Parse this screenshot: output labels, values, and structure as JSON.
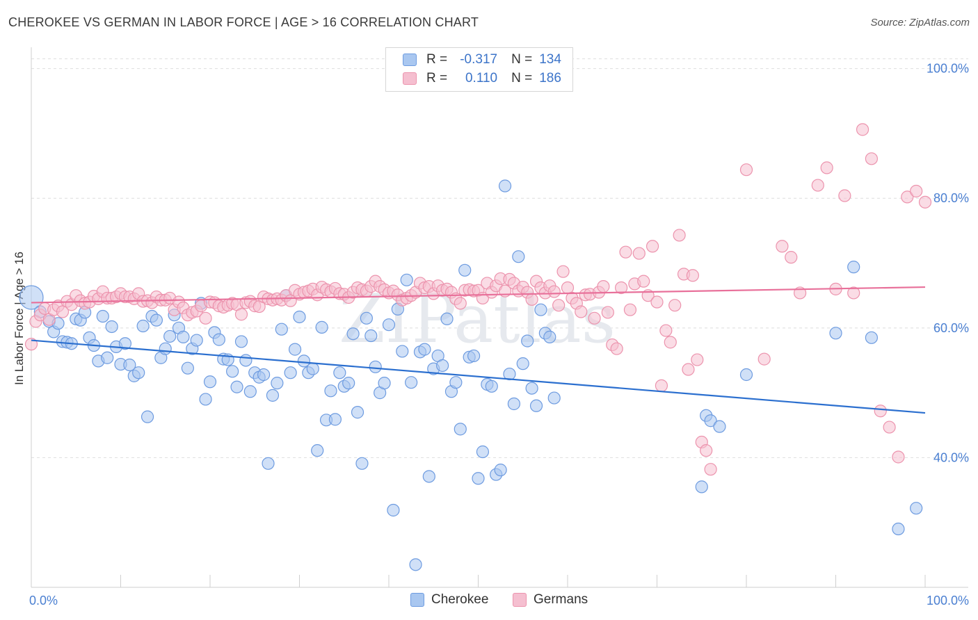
{
  "title": "CHEROKEE VS GERMAN IN LABOR FORCE | AGE > 16 CORRELATION CHART",
  "source": "Source: ZipAtlas.com",
  "watermark": "ZIPatlas",
  "legend": {
    "rows": [
      {
        "r_label": "R =",
        "r_value": "-0.317",
        "n_label": "N =",
        "n_value": "134"
      },
      {
        "r_label": "R =",
        "r_value": "0.110",
        "n_label": "N =",
        "n_value": "186"
      }
    ]
  },
  "bottom_legend": [
    "Cherokee",
    "Germans"
  ],
  "colors": {
    "blue_fill": "#a9c7f0",
    "blue_stroke": "#6d9be0",
    "blue_line": "#2b6fcf",
    "pink_fill": "#f5bfd0",
    "pink_stroke": "#ec93ad",
    "pink_line": "#e8709a",
    "tick_text": "#4a7fd1",
    "grid": "#dedede"
  },
  "chart_data": {
    "type": "scatter",
    "title": "CHEROKEE VS GERMAN IN LABOR FORCE | AGE > 16 CORRELATION CHART",
    "xlabel": "",
    "ylabel": "In Labor Force | Age > 16",
    "xlim": [
      0,
      100
    ],
    "ylim": [
      20,
      102
    ],
    "x_tick_labels": [
      "0.0%",
      "100.0%"
    ],
    "y_ticks": [
      40,
      60,
      80,
      100
    ],
    "y_tick_labels": [
      "40.0%",
      "60.0%",
      "80.0%",
      "100.0%"
    ],
    "grid": true,
    "legend_position": "top-center",
    "series": [
      {
        "name": "Cherokee",
        "r": -0.317,
        "n": 134,
        "trend": {
          "x": [
            0,
            100
          ],
          "y": [
            58.1,
            46.9
          ]
        },
        "points": [
          [
            0,
            64.7
          ],
          [
            1,
            62.5
          ],
          [
            2,
            61
          ],
          [
            2.5,
            59.4
          ],
          [
            3,
            60.7
          ],
          [
            3.5,
            57.9
          ],
          [
            4,
            57.8
          ],
          [
            4.5,
            57.6
          ],
          [
            5,
            61.4
          ],
          [
            5.5,
            61.2
          ],
          [
            6,
            62.4
          ],
          [
            6.5,
            58.5
          ],
          [
            7,
            57.3
          ],
          [
            7.5,
            54.9
          ],
          [
            8,
            61.8
          ],
          [
            8.5,
            55.4
          ],
          [
            9,
            60.2
          ],
          [
            9.5,
            57.1
          ],
          [
            10,
            54.4
          ],
          [
            10.5,
            57.6
          ],
          [
            11,
            54.3
          ],
          [
            11.5,
            52.6
          ],
          [
            12,
            53.1
          ],
          [
            12.5,
            60.3
          ],
          [
            13,
            46.3
          ],
          [
            13.5,
            61.8
          ],
          [
            14,
            61.2
          ],
          [
            14.5,
            55.4
          ],
          [
            15,
            56.8
          ],
          [
            15.5,
            58.7
          ],
          [
            16,
            62
          ],
          [
            16.5,
            60
          ],
          [
            17,
            58.6
          ],
          [
            17.5,
            53.8
          ],
          [
            18,
            56.8
          ],
          [
            18.5,
            58.1
          ],
          [
            19,
            63.8
          ],
          [
            19.5,
            49
          ],
          [
            20,
            51.7
          ],
          [
            20.5,
            59.3
          ],
          [
            21,
            58.2
          ],
          [
            21.5,
            55.2
          ],
          [
            22,
            55.1
          ],
          [
            22.5,
            53.3
          ],
          [
            23,
            50.9
          ],
          [
            23.5,
            57.9
          ],
          [
            24,
            55
          ],
          [
            24.5,
            50.2
          ],
          [
            25,
            53.1
          ],
          [
            25.5,
            52.4
          ],
          [
            26,
            52.8
          ],
          [
            26.5,
            39.1
          ],
          [
            27,
            49.6
          ],
          [
            27.5,
            51.5
          ],
          [
            28,
            59.8
          ],
          [
            28.5,
            65
          ],
          [
            29,
            53.1
          ],
          [
            29.5,
            56.7
          ],
          [
            30,
            61.7
          ],
          [
            30.5,
            54.9
          ],
          [
            31,
            53.1
          ],
          [
            31.5,
            53.7
          ],
          [
            32,
            41.1
          ],
          [
            32.5,
            60.1
          ],
          [
            33,
            45.8
          ],
          [
            33.5,
            50.3
          ],
          [
            34,
            45.9
          ],
          [
            34.5,
            53.1
          ],
          [
            35,
            51
          ],
          [
            35.5,
            51.5
          ],
          [
            36,
            59.1
          ],
          [
            36.5,
            47
          ],
          [
            37,
            39.1
          ],
          [
            37.5,
            61.5
          ],
          [
            38,
            58.8
          ],
          [
            38.5,
            54
          ],
          [
            39,
            50
          ],
          [
            39.5,
            51.5
          ],
          [
            40,
            60.5
          ],
          [
            40.5,
            31.9
          ],
          [
            41,
            62.9
          ],
          [
            41.5,
            56.4
          ],
          [
            42,
            67.4
          ],
          [
            42.5,
            51.6
          ],
          [
            43,
            23.5
          ],
          [
            43.5,
            56.3
          ],
          [
            44,
            56.7
          ],
          [
            44.5,
            37.1
          ],
          [
            45,
            53.7
          ],
          [
            45.5,
            55.7
          ],
          [
            46,
            54.2
          ],
          [
            46.5,
            61.4
          ],
          [
            47,
            50.2
          ],
          [
            47.5,
            51.6
          ],
          [
            48,
            44.4
          ],
          [
            48.5,
            68.9
          ],
          [
            49,
            55.5
          ],
          [
            49.5,
            55.7
          ],
          [
            50,
            36.8
          ],
          [
            50.5,
            40.9
          ],
          [
            51,
            51.3
          ],
          [
            51.5,
            51
          ],
          [
            52,
            37.4
          ],
          [
            52.5,
            38.1
          ],
          [
            53,
            81.9
          ],
          [
            53.5,
            52.9
          ],
          [
            54,
            48.3
          ],
          [
            54.5,
            71
          ],
          [
            55,
            54.5
          ],
          [
            55.5,
            58
          ],
          [
            56,
            50.7
          ],
          [
            56.5,
            48
          ],
          [
            57,
            62.8
          ],
          [
            57.5,
            59.2
          ],
          [
            58,
            58.6
          ],
          [
            58.5,
            49.2
          ],
          [
            75,
            35.5
          ],
          [
            75.5,
            46.5
          ],
          [
            76,
            45.7
          ],
          [
            77,
            44.8
          ],
          [
            80,
            52.8
          ],
          [
            90,
            59.2
          ],
          [
            92,
            69.4
          ],
          [
            94,
            58.5
          ],
          [
            97,
            29
          ],
          [
            99,
            32.2
          ]
        ]
      },
      {
        "name": "Germans",
        "r": 0.11,
        "n": 186,
        "trend": {
          "x": [
            0,
            100
          ],
          "y": [
            63.9,
            66.3
          ]
        },
        "points": [
          [
            0,
            57.5
          ],
          [
            0.5,
            61
          ],
          [
            1,
            62
          ],
          [
            1.5,
            63
          ],
          [
            2,
            61.3
          ],
          [
            2.5,
            62.8
          ],
          [
            3,
            63.4
          ],
          [
            3.5,
            62.5
          ],
          [
            4,
            64.1
          ],
          [
            4.5,
            63.6
          ],
          [
            5,
            65
          ],
          [
            5.5,
            64.2
          ],
          [
            6,
            63.8
          ],
          [
            6.5,
            64
          ],
          [
            7,
            64.9
          ],
          [
            7.5,
            64.5
          ],
          [
            8,
            65.6
          ],
          [
            8.5,
            64.6
          ],
          [
            9,
            64.6
          ],
          [
            9.5,
            64.8
          ],
          [
            10,
            65.3
          ],
          [
            10.5,
            64.8
          ],
          [
            11,
            64.8
          ],
          [
            11.5,
            64.5
          ],
          [
            12,
            65.3
          ],
          [
            12.5,
            64.1
          ],
          [
            13,
            64.2
          ],
          [
            13.5,
            63.9
          ],
          [
            14,
            64.8
          ],
          [
            14.5,
            64.3
          ],
          [
            15,
            64.3
          ],
          [
            15.5,
            64.6
          ],
          [
            16,
            62.8
          ],
          [
            16.5,
            64
          ],
          [
            17,
            63.1
          ],
          [
            17.5,
            62
          ],
          [
            18,
            62.4
          ],
          [
            18.5,
            62.6
          ],
          [
            19,
            63.4
          ],
          [
            19.5,
            61.5
          ],
          [
            20,
            64
          ],
          [
            20.5,
            63.9
          ],
          [
            21,
            63.4
          ],
          [
            21.5,
            63.2
          ],
          [
            22,
            63.5
          ],
          [
            22.5,
            63.8
          ],
          [
            23,
            63.6
          ],
          [
            23.5,
            62.1
          ],
          [
            24,
            63.9
          ],
          [
            24.5,
            64.1
          ],
          [
            25,
            63.4
          ],
          [
            25.5,
            63.3
          ],
          [
            26,
            64.8
          ],
          [
            26.5,
            64.5
          ],
          [
            27,
            64.3
          ],
          [
            27.5,
            64.5
          ],
          [
            28,
            64.3
          ],
          [
            28.5,
            65
          ],
          [
            29,
            64.2
          ],
          [
            29.5,
            65.8
          ],
          [
            30,
            65.2
          ],
          [
            30.5,
            65.5
          ],
          [
            31,
            65.7
          ],
          [
            31.5,
            66
          ],
          [
            32,
            65.1
          ],
          [
            32.5,
            66.3
          ],
          [
            33,
            65.9
          ],
          [
            33.5,
            65.6
          ],
          [
            34,
            66.1
          ],
          [
            34.5,
            65.3
          ],
          [
            35,
            65.2
          ],
          [
            35.5,
            64.7
          ],
          [
            36,
            65.5
          ],
          [
            36.5,
            66.2
          ],
          [
            37,
            65.9
          ],
          [
            37.5,
            65.7
          ],
          [
            38,
            66.4
          ],
          [
            38.5,
            67.2
          ],
          [
            39,
            66.4
          ],
          [
            39.5,
            65.9
          ],
          [
            40,
            65.4
          ],
          [
            40.5,
            65.7
          ],
          [
            41,
            65.1
          ],
          [
            41.5,
            64.3
          ],
          [
            42,
            64.6
          ],
          [
            42.5,
            65
          ],
          [
            43,
            65.5
          ],
          [
            43.5,
            66.9
          ],
          [
            44,
            66.2
          ],
          [
            44.5,
            66.4
          ],
          [
            45,
            65.3
          ],
          [
            45.5,
            66.5
          ],
          [
            46,
            65.8
          ],
          [
            46.5,
            66
          ],
          [
            47,
            65.5
          ],
          [
            47.5,
            64.5
          ],
          [
            48,
            63.8
          ],
          [
            48.5,
            65.8
          ],
          [
            49,
            65.9
          ],
          [
            49.5,
            65.7
          ],
          [
            50,
            65.8
          ],
          [
            50.5,
            64.6
          ],
          [
            51,
            66.9
          ],
          [
            51.5,
            65.5
          ],
          [
            52,
            66.5
          ],
          [
            52.5,
            67.6
          ],
          [
            53,
            65.7
          ],
          [
            53.5,
            67.5
          ],
          [
            54,
            66.9
          ],
          [
            54.5,
            65.7
          ],
          [
            55,
            66.3
          ],
          [
            55.5,
            65.5
          ],
          [
            56,
            64.4
          ],
          [
            56.5,
            67.2
          ],
          [
            57,
            66.2
          ],
          [
            57.5,
            65.4
          ],
          [
            58,
            66.5
          ],
          [
            58.5,
            65.6
          ],
          [
            59,
            63.5
          ],
          [
            59.5,
            68.7
          ],
          [
            60,
            66.2
          ],
          [
            60.5,
            64.6
          ],
          [
            61,
            63.8
          ],
          [
            61.5,
            62.5
          ],
          [
            62,
            65.1
          ],
          [
            62.5,
            65.2
          ],
          [
            63,
            61.5
          ],
          [
            63.5,
            65.5
          ],
          [
            64,
            66.4
          ],
          [
            64.5,
            62.4
          ],
          [
            65,
            57.4
          ],
          [
            65.5,
            56.8
          ],
          [
            66,
            66.2
          ],
          [
            66.5,
            71.7
          ],
          [
            67,
            62.8
          ],
          [
            67.5,
            66.8
          ],
          [
            68,
            71.5
          ],
          [
            68.5,
            67.2
          ],
          [
            69,
            65
          ],
          [
            69.5,
            72.6
          ],
          [
            70,
            64
          ],
          [
            70.5,
            51.1
          ],
          [
            71,
            59.6
          ],
          [
            71.5,
            57.8
          ],
          [
            72,
            63.5
          ],
          [
            72.5,
            74.3
          ],
          [
            73,
            68.3
          ],
          [
            73.5,
            53.6
          ],
          [
            74,
            68.1
          ],
          [
            74.5,
            55.1
          ],
          [
            75,
            42.4
          ],
          [
            75.5,
            41.1
          ],
          [
            76,
            38.2
          ],
          [
            80,
            84.4
          ],
          [
            82,
            55.2
          ],
          [
            84,
            72.6
          ],
          [
            85,
            70.9
          ],
          [
            86,
            65.4
          ],
          [
            88,
            82
          ],
          [
            89,
            84.7
          ],
          [
            90,
            66
          ],
          [
            91,
            80.4
          ],
          [
            92,
            65.4
          ],
          [
            93,
            90.6
          ],
          [
            94,
            86.1
          ],
          [
            95,
            47.2
          ],
          [
            96,
            44.7
          ],
          [
            97,
            40.1
          ],
          [
            98,
            80.2
          ],
          [
            99,
            81.1
          ],
          [
            100,
            79.4
          ]
        ]
      }
    ]
  }
}
